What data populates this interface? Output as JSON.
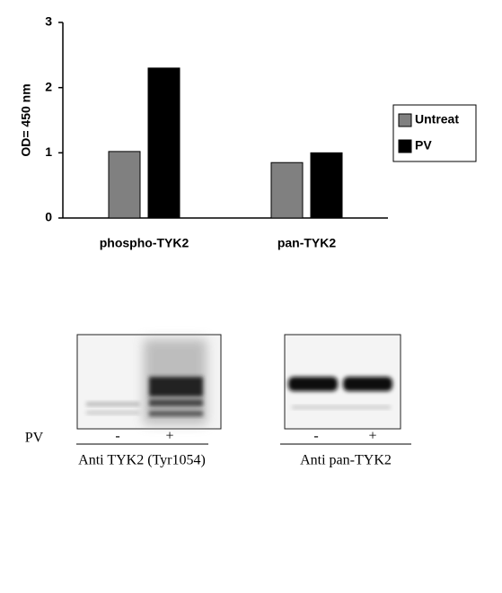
{
  "chart_data": {
    "type": "bar",
    "y_label": "OD= 450 nm",
    "categories": [
      "phospho-TYK2",
      "pan-TYK2"
    ],
    "series": [
      {
        "name": "Untreat",
        "color": "#808080",
        "values": [
          1.02,
          0.85
        ]
      },
      {
        "name": "PV",
        "color": "#000000",
        "values": [
          2.3,
          1.0
        ]
      }
    ],
    "ylim": [
      0,
      3
    ],
    "yticks": [
      0,
      1,
      2,
      3
    ],
    "grid": false,
    "legend": "right"
  },
  "blots": {
    "row_label": "PV",
    "panels": [
      {
        "lanes": [
          "-",
          "+"
        ],
        "label": "Anti TYK2 (Tyr1054)"
      },
      {
        "lanes": [
          "-",
          "+"
        ],
        "label": "Anti pan-TYK2"
      }
    ]
  }
}
